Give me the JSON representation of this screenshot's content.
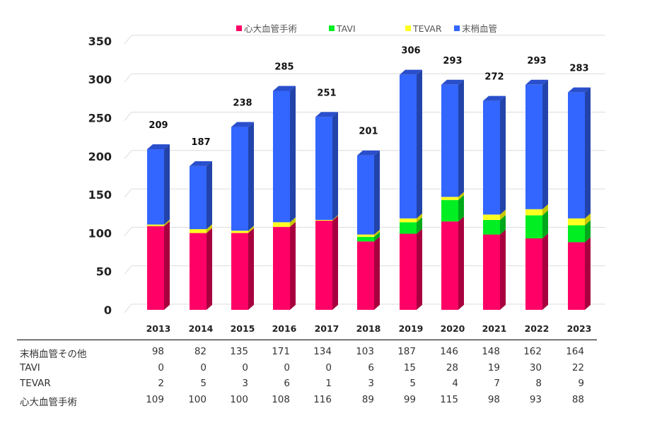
{
  "chart_data": {
    "type": "bar",
    "stacked": true,
    "style": "3d-column",
    "categories": [
      "2013",
      "2014",
      "2015",
      "2016",
      "2017",
      "2018",
      "2019",
      "2020",
      "2021",
      "2022",
      "2023"
    ],
    "series": [
      {
        "name": "心大血管手術",
        "color": "#ff0066",
        "values": [
          109,
          100,
          100,
          108,
          116,
          89,
          99,
          115,
          98,
          93,
          88
        ]
      },
      {
        "name": "TAVI",
        "color": "#00ee22",
        "values": [
          0,
          0,
          0,
          0,
          0,
          6,
          15,
          28,
          19,
          30,
          22
        ]
      },
      {
        "name": "TEVAR",
        "color": "#ffff22",
        "values": [
          2,
          5,
          3,
          6,
          1,
          3,
          5,
          4,
          7,
          8,
          9
        ]
      },
      {
        "name": "末梢血管",
        "color": "#3366ff",
        "values": [
          98,
          82,
          135,
          171,
          134,
          103,
          187,
          146,
          148,
          162,
          164
        ]
      }
    ],
    "totals": [
      "209",
      "187",
      "238",
      "285",
      "251",
      "201",
      "306",
      "293",
      "272",
      "293",
      "283"
    ],
    "yticks": [
      "0",
      "50",
      "100",
      "150",
      "200",
      "250",
      "300",
      "350"
    ],
    "ylim": [
      0,
      350
    ],
    "grid": true,
    "legend_position": "top",
    "title": "",
    "xlabel": "",
    "ylabel": ""
  },
  "data_table": {
    "rows": [
      {
        "label": "末梢血管その他",
        "values": [
          "98",
          "82",
          "135",
          "171",
          "134",
          "103",
          "187",
          "146",
          "148",
          "162",
          "164"
        ]
      },
      {
        "label": "TAVI",
        "values": [
          "0",
          "0",
          "0",
          "0",
          "0",
          "6",
          "15",
          "28",
          "19",
          "30",
          "22"
        ]
      },
      {
        "label": "TEVAR",
        "values": [
          "2",
          "5",
          "3",
          "6",
          "1",
          "3",
          "5",
          "4",
          "7",
          "8",
          "9"
        ]
      },
      {
        "label": "心大血管手術",
        "values": [
          "109",
          "100",
          "100",
          "108",
          "116",
          "89",
          "99",
          "115",
          "98",
          "93",
          "88"
        ]
      }
    ]
  }
}
